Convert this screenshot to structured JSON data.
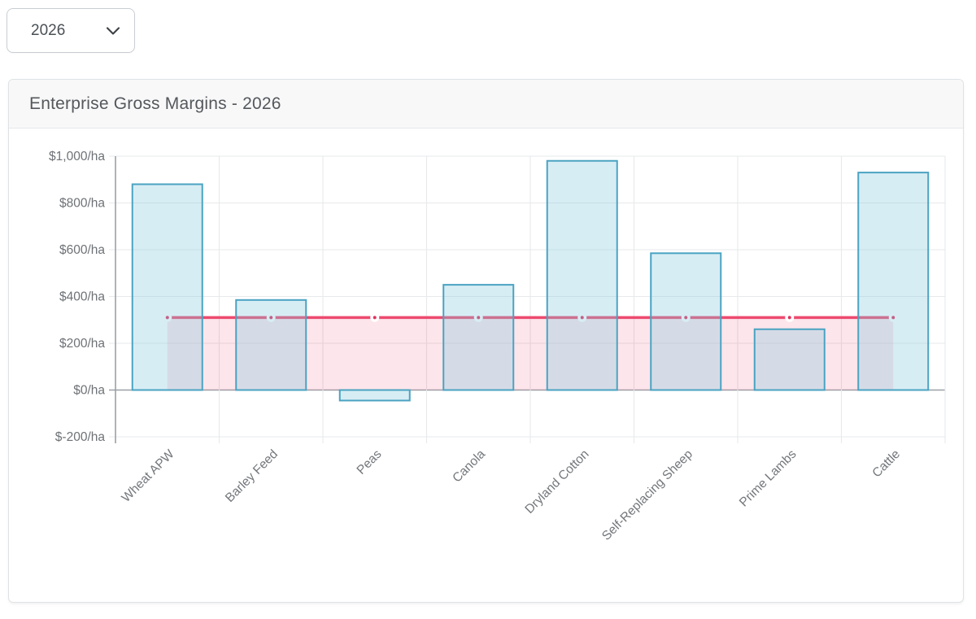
{
  "year_selector": {
    "value": "2026",
    "icon": "chevron-down"
  },
  "card": {
    "title": "Enterprise Gross Margins - 2026"
  },
  "colors": {
    "bar_fill": "rgba(130,200,220,0.32)",
    "bar_border": "#4aa3c2",
    "line": "#ed4a6e",
    "line_area_fill": "rgba(237,74,110,0.14)",
    "point_center": "#e0325e",
    "point_ring": "#ffffff",
    "grid": "#e7e9eb",
    "axis": "#9aa0a6",
    "tick_text": "#6e7276",
    "x_tick_text": "#73777b"
  },
  "chart_data": {
    "type": "bar",
    "title": "Enterprise Gross Margins - 2026",
    "categories": [
      "Wheat APW",
      "Barley Feed",
      "Peas",
      "Canola",
      "Dryland Cotton",
      "Self-Replacing Sheep",
      "Prime Lambs",
      "Cattle"
    ],
    "series": [
      {
        "name": "gross-margin-bars",
        "type": "bar",
        "values": [
          880,
          385,
          -45,
          450,
          980,
          585,
          260,
          930
        ]
      },
      {
        "name": "reference-line",
        "type": "line",
        "values": [
          310,
          310,
          310,
          310,
          310,
          310,
          310,
          310
        ],
        "fill_to_zero": true
      }
    ],
    "ylabel": "$/ha",
    "y_ticks": [
      {
        "value": 1000,
        "label": "$1,000/ha"
      },
      {
        "value": 800,
        "label": "$800/ha"
      },
      {
        "value": 600,
        "label": "$600/ha"
      },
      {
        "value": 400,
        "label": "$400/ha"
      },
      {
        "value": 200,
        "label": "$200/ha"
      },
      {
        "value": 0,
        "label": "$0/ha"
      },
      {
        "value": -200,
        "label": "$-200/ha"
      }
    ],
    "ylim": [
      -200,
      1000
    ],
    "grid": true,
    "legend": "none",
    "x_label_rotation": 45
  }
}
